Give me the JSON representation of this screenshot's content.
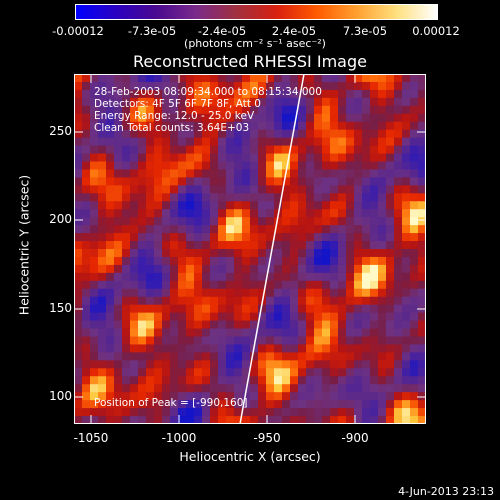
{
  "colorbar": {
    "gradient": [
      "#0000ff",
      "#2a00c0",
      "#4a0a90",
      "#7a2a8a",
      "#a03040",
      "#d82010",
      "#ff5a00",
      "#ffa030",
      "#ffe080",
      "#ffffff"
    ],
    "tick_labels": [
      "-0.00012",
      "-7.3e-05",
      "-2.4e-05",
      "2.4e-05",
      "7.3e-05",
      "0.00012"
    ],
    "unit": "(photons cm⁻² s⁻¹ asec⁻²)"
  },
  "title": "Reconstructed RHESSI Image",
  "info_lines": [
    "28-Feb-2003 08:09:34.000 to 08:15:34.000",
    "Detectors: 4F 5F 6F 7F 8F, Att 0",
    "Energy Range: 12.0 - 25.0 keV",
    "Clean    Total counts: 3.64E+03"
  ],
  "peak_label": "Position of Peak = [-990,160]",
  "axes": {
    "xlabel": "Heliocentric X (arcsec)",
    "ylabel": "Heliocentric Y (arcsec)",
    "xlim": [
      -1060,
      -860
    ],
    "ylim": [
      90,
      290
    ],
    "x_ticks": [
      "-1050",
      "-1000",
      "-950",
      "-900"
    ],
    "y_ticks": [
      "100",
      "150",
      "200",
      "250"
    ]
  },
  "date_stamp": "4-Jun-2013 23:13"
}
